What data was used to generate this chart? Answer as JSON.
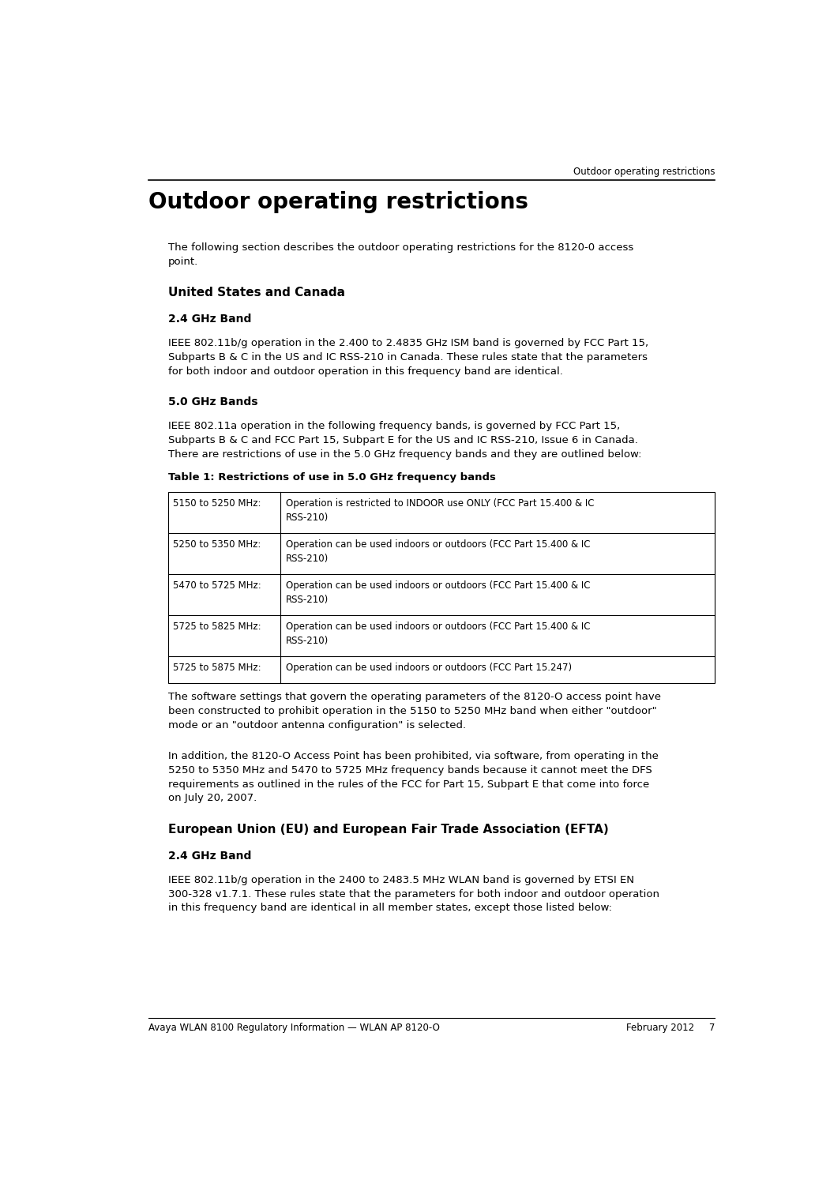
{
  "header_right": "Outdoor operating restrictions",
  "page_title": "Outdoor operating restrictions",
  "footer_left": "Avaya WLAN 8100 Regulatory Information — WLAN AP 8120-O",
  "footer_right": "February 2012     7",
  "bg_color": "#ffffff",
  "text_color": "#000000",
  "title_font_size": 20,
  "heading2_font_size": 11,
  "heading3_font_size": 10,
  "body_font_size": 9.5,
  "header_font_size": 8.5,
  "footer_font_size": 8.5,
  "table_font_size": 8.5,
  "line_color": "#000000",
  "intro_lines": [
    "The following section describes the outdoor operating restrictions for the 8120-0 access",
    "point."
  ],
  "us_canada_heading": "United States and Canada",
  "band_24_heading": "2.4 GHz Band",
  "band_24_lines": [
    "IEEE 802.11b/g operation in the 2.400 to 2.4835 GHz ISM band is governed by FCC Part 15,",
    "Subparts B & C in the US and IC RSS-210 in Canada. These rules state that the parameters",
    "for both indoor and outdoor operation in this frequency band are identical."
  ],
  "band_50_heading": "5.0 GHz Bands",
  "band_50_lines": [
    "IEEE 802.11a operation in the following frequency bands, is governed by FCC Part 15,",
    "Subparts B & C and FCC Part 15, Subpart E for the US and IC RSS-210, Issue 6 in Canada.",
    "There are restrictions of use in the 5.0 GHz frequency bands and they are outlined below:"
  ],
  "table_title": "Table 1: Restrictions of use in 5.0 GHz frequency bands",
  "table_rows": [
    [
      "5150 to 5250 MHz:",
      "Operation is restricted to INDOOR use ONLY (FCC Part 15.400 & IC\nRSS-210)"
    ],
    [
      "5250 to 5350 MHz:",
      "Operation can be used indoors or outdoors (FCC Part 15.400 & IC\nRSS-210)"
    ],
    [
      "5470 to 5725 MHz:",
      "Operation can be used indoors or outdoors (FCC Part 15.400 & IC\nRSS-210)"
    ],
    [
      "5725 to 5825 MHz:",
      "Operation can be used indoors or outdoors (FCC Part 15.400 & IC\nRSS-210)"
    ],
    [
      "5725 to 5875 MHz:",
      "Operation can be used indoors or outdoors (FCC Part 15.247)"
    ]
  ],
  "post_table_lines1": [
    "The software settings that govern the operating parameters of the 8120-O access point have",
    "been constructed to prohibit operation in the 5150 to 5250 MHz band when either \"outdoor\"",
    "mode or an \"outdoor antenna configuration\" is selected."
  ],
  "post_table_lines2": [
    "In addition, the 8120-O Access Point has been prohibited, via software, from operating in the",
    "5250 to 5350 MHz and 5470 to 5725 MHz frequency bands because it cannot meet the DFS",
    "requirements as outlined in the rules of the FCC for Part 15, Subpart E that come into force",
    "on July 20, 2007."
  ],
  "eu_heading": "European Union (EU) and European Fair Trade Association (EFTA)",
  "eu_band_24_heading": "2.4 GHz Band",
  "eu_band_24_lines": [
    "IEEE 802.11b/g operation in the 2400 to 2483.5 MHz WLAN band is governed by ETSI EN",
    "300-328 v1.7.1. These rules state that the parameters for both indoor and outdoor operation",
    "in this frequency band are identical in all member states, except those listed below:"
  ]
}
